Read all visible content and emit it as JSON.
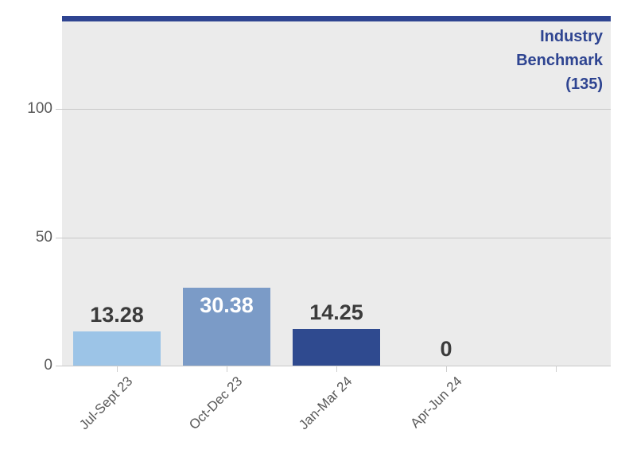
{
  "chart_data": {
    "type": "bar",
    "title": "",
    "xlabel": "",
    "ylabel": "",
    "categories": [
      "Jul-Sept 23",
      "Oct-Dec 23",
      "Jan-Mar 24",
      "Apr-Jun 24"
    ],
    "values": [
      13.28,
      30.38,
      14.25,
      0
    ],
    "value_labels": [
      "13.28",
      "30.38",
      "14.25",
      "0"
    ],
    "bar_colors": [
      "#9cc4e7",
      "#7b9bc7",
      "#2f4a8f",
      "#9cc4e7"
    ],
    "benchmark": {
      "label": "Industry Benchmark (135)",
      "value": 135
    },
    "yticks": [
      0,
      50,
      100
    ],
    "ylim": [
      0,
      135
    ],
    "num_slots": 5,
    "grid": true,
    "legend": "none",
    "colors": {
      "benchmark": "#2e4491",
      "plot_background": "#ebebeb",
      "gridline": "#c8c8c8",
      "xtick": "#cfcfcf",
      "axis_label": "#595959",
      "data_label": "#3b3b3b",
      "data_label_inside": "#ffffff"
    }
  }
}
